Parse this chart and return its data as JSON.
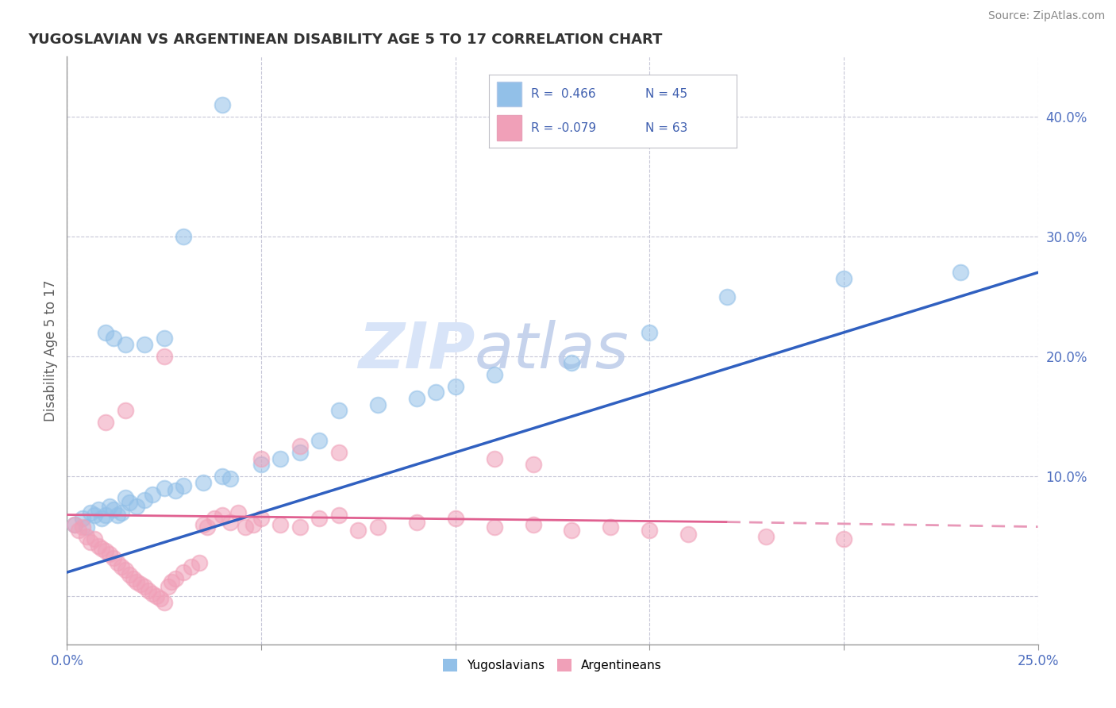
{
  "title": "YUGOSLAVIAN VS ARGENTINEAN DISABILITY AGE 5 TO 17 CORRELATION CHART",
  "source": "Source: ZipAtlas.com",
  "ylabel": "Disability Age 5 to 17",
  "xlim": [
    0.0,
    0.25
  ],
  "ylim": [
    -0.04,
    0.45
  ],
  "xticks": [
    0.0,
    0.05,
    0.1,
    0.15,
    0.2,
    0.25
  ],
  "xticklabels": [
    "0.0%",
    "",
    "",
    "",
    "",
    "25.0%"
  ],
  "ytick_vals": [
    0.0,
    0.1,
    0.2,
    0.3,
    0.4
  ],
  "yticklabels_right": [
    "",
    "10.0%",
    "20.0%",
    "30.0%",
    "40.0%"
  ],
  "legend_r_blue": " 0.466",
  "legend_n_blue": "45",
  "legend_r_pink": "-0.079",
  "legend_n_pink": "63",
  "blue_marker_color": "#92C0E8",
  "pink_marker_color": "#F0A0B8",
  "blue_line_color": "#3060C0",
  "pink_line_solid_color": "#E06090",
  "pink_line_dash_color": "#E898B8",
  "watermark_color": "#D8E4F8",
  "background_color": "#ffffff",
  "grid_color": "#C8C8D8",
  "blue_scatter_x": [
    0.002,
    0.004,
    0.005,
    0.006,
    0.007,
    0.008,
    0.009,
    0.01,
    0.011,
    0.012,
    0.013,
    0.014,
    0.015,
    0.016,
    0.018,
    0.02,
    0.022,
    0.025,
    0.028,
    0.03,
    0.035,
    0.04,
    0.042,
    0.05,
    0.055,
    0.06,
    0.065,
    0.07,
    0.08,
    0.09,
    0.095,
    0.1,
    0.11,
    0.13,
    0.15,
    0.17,
    0.2,
    0.23,
    0.01,
    0.012,
    0.015,
    0.02,
    0.025,
    0.03,
    0.04
  ],
  "blue_scatter_y": [
    0.06,
    0.065,
    0.058,
    0.07,
    0.068,
    0.072,
    0.065,
    0.068,
    0.075,
    0.072,
    0.068,
    0.07,
    0.082,
    0.078,
    0.075,
    0.08,
    0.085,
    0.09,
    0.088,
    0.092,
    0.095,
    0.1,
    0.098,
    0.11,
    0.115,
    0.12,
    0.13,
    0.155,
    0.16,
    0.165,
    0.17,
    0.175,
    0.185,
    0.195,
    0.22,
    0.25,
    0.265,
    0.27,
    0.22,
    0.215,
    0.21,
    0.21,
    0.215,
    0.3,
    0.41
  ],
  "pink_scatter_x": [
    0.002,
    0.003,
    0.004,
    0.005,
    0.006,
    0.007,
    0.008,
    0.009,
    0.01,
    0.011,
    0.012,
    0.013,
    0.014,
    0.015,
    0.016,
    0.017,
    0.018,
    0.019,
    0.02,
    0.021,
    0.022,
    0.023,
    0.024,
    0.025,
    0.026,
    0.027,
    0.028,
    0.03,
    0.032,
    0.034,
    0.035,
    0.036,
    0.038,
    0.04,
    0.042,
    0.044,
    0.046,
    0.048,
    0.05,
    0.055,
    0.06,
    0.065,
    0.07,
    0.075,
    0.08,
    0.09,
    0.1,
    0.11,
    0.12,
    0.13,
    0.14,
    0.15,
    0.16,
    0.18,
    0.2,
    0.12,
    0.11,
    0.07,
    0.06,
    0.05,
    0.01,
    0.015,
    0.025
  ],
  "pink_scatter_y": [
    0.06,
    0.055,
    0.058,
    0.05,
    0.045,
    0.048,
    0.042,
    0.04,
    0.038,
    0.035,
    0.032,
    0.028,
    0.025,
    0.022,
    0.018,
    0.015,
    0.012,
    0.01,
    0.008,
    0.005,
    0.002,
    0.0,
    -0.002,
    -0.005,
    0.008,
    0.012,
    0.015,
    0.02,
    0.025,
    0.028,
    0.06,
    0.058,
    0.065,
    0.068,
    0.062,
    0.07,
    0.058,
    0.06,
    0.065,
    0.06,
    0.058,
    0.065,
    0.068,
    0.055,
    0.058,
    0.062,
    0.065,
    0.058,
    0.06,
    0.055,
    0.058,
    0.055,
    0.052,
    0.05,
    0.048,
    0.11,
    0.115,
    0.12,
    0.125,
    0.115,
    0.145,
    0.155,
    0.2
  ]
}
